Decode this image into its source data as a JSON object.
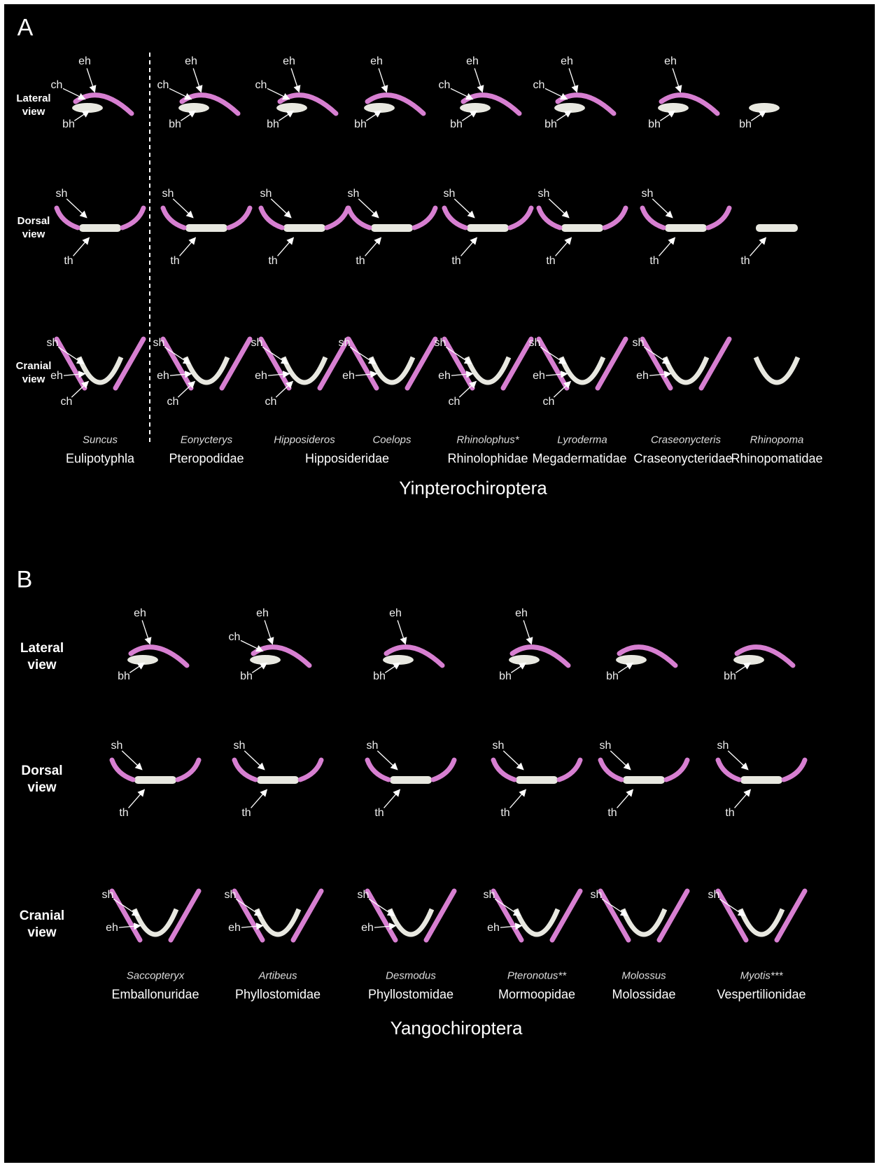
{
  "panels": [
    {
      "letter": "A",
      "row_labels": [
        "Lateral view",
        "Dorsal view",
        "Cranial view"
      ],
      "columns": [
        {
          "genus": "Suncus",
          "lateral": [
            "eh",
            "ch",
            "bh"
          ],
          "dorsal": [
            "sh",
            "th"
          ],
          "cranial": [
            "sh",
            "eh",
            "ch"
          ]
        },
        {
          "genus": "Eonycterys",
          "lateral": [
            "eh",
            "ch",
            "bh"
          ],
          "dorsal": [
            "sh",
            "th"
          ],
          "cranial": [
            "sh",
            "eh",
            "ch"
          ]
        },
        {
          "genus": "Hipposideros",
          "lateral": [
            "eh",
            "ch",
            "bh"
          ],
          "dorsal": [
            "sh",
            "th"
          ],
          "cranial": [
            "sh",
            "eh",
            "ch"
          ]
        },
        {
          "genus": "Coelops",
          "lateral": [
            "eh",
            "bh"
          ],
          "dorsal": [
            "sh",
            "th"
          ],
          "cranial": [
            "sh",
            "eh"
          ]
        },
        {
          "genus": "Rhinolophus*",
          "lateral": [
            "eh",
            "ch",
            "bh"
          ],
          "dorsal": [
            "sh",
            "th"
          ],
          "cranial": [
            "sh",
            "eh",
            "ch"
          ]
        },
        {
          "genus": "Lyroderma",
          "lateral": [
            "eh",
            "ch",
            "bh"
          ],
          "dorsal": [
            "sh",
            "th"
          ],
          "cranial": [
            "sh",
            "eh",
            "ch"
          ]
        },
        {
          "genus": "Craseonycteris",
          "lateral": [
            "eh",
            "bh"
          ],
          "dorsal": [
            "sh",
            "th"
          ],
          "cranial": [
            "sh",
            "eh"
          ]
        },
        {
          "genus": "Rhinopoma",
          "lateral": [
            "bh"
          ],
          "dorsal": [
            "th"
          ],
          "cranial": []
        }
      ],
      "families": [
        "Eulipotyphla",
        "Pteropodidae",
        "Hipposideridae",
        "Rhinolophidae",
        "Megadermatidae",
        "Craseonycteridae",
        "Rhinopomatidae"
      ],
      "group": "Yinpterochiroptera"
    },
    {
      "letter": "B",
      "row_labels": [
        "Lateral view",
        "Dorsal view",
        "Cranial view"
      ],
      "columns": [
        {
          "genus": "Saccopteryx",
          "lateral": [
            "eh",
            "bh"
          ],
          "dorsal": [
            "sh",
            "th"
          ],
          "cranial": [
            "sh",
            "eh"
          ]
        },
        {
          "genus": "Artibeus",
          "lateral": [
            "eh",
            "ch",
            "bh"
          ],
          "dorsal": [
            "sh",
            "th"
          ],
          "cranial": [
            "sh",
            "eh"
          ]
        },
        {
          "genus": "Desmodus",
          "lateral": [
            "eh",
            "bh"
          ],
          "dorsal": [
            "sh",
            "th"
          ],
          "cranial": [
            "sh",
            "eh"
          ]
        },
        {
          "genus": "Pteronotus**",
          "lateral": [
            "eh",
            "bh"
          ],
          "dorsal": [
            "sh",
            "th"
          ],
          "cranial": [
            "sh",
            "eh"
          ]
        },
        {
          "genus": "Molossus",
          "lateral": [
            "bh"
          ],
          "dorsal": [
            "sh",
            "th"
          ],
          "cranial": [
            "sh"
          ]
        },
        {
          "genus": "Myotis***",
          "lateral": [
            "bh"
          ],
          "dorsal": [
            "sh",
            "th"
          ],
          "cranial": [
            "sh"
          ]
        }
      ],
      "families": [
        "Emballonuridae",
        "Phyllostomidae",
        "Phyllostomidae",
        "Mormoopidae",
        "Molossidae",
        "Vespertilionidae"
      ],
      "group": "Yangochiroptera"
    }
  ]
}
